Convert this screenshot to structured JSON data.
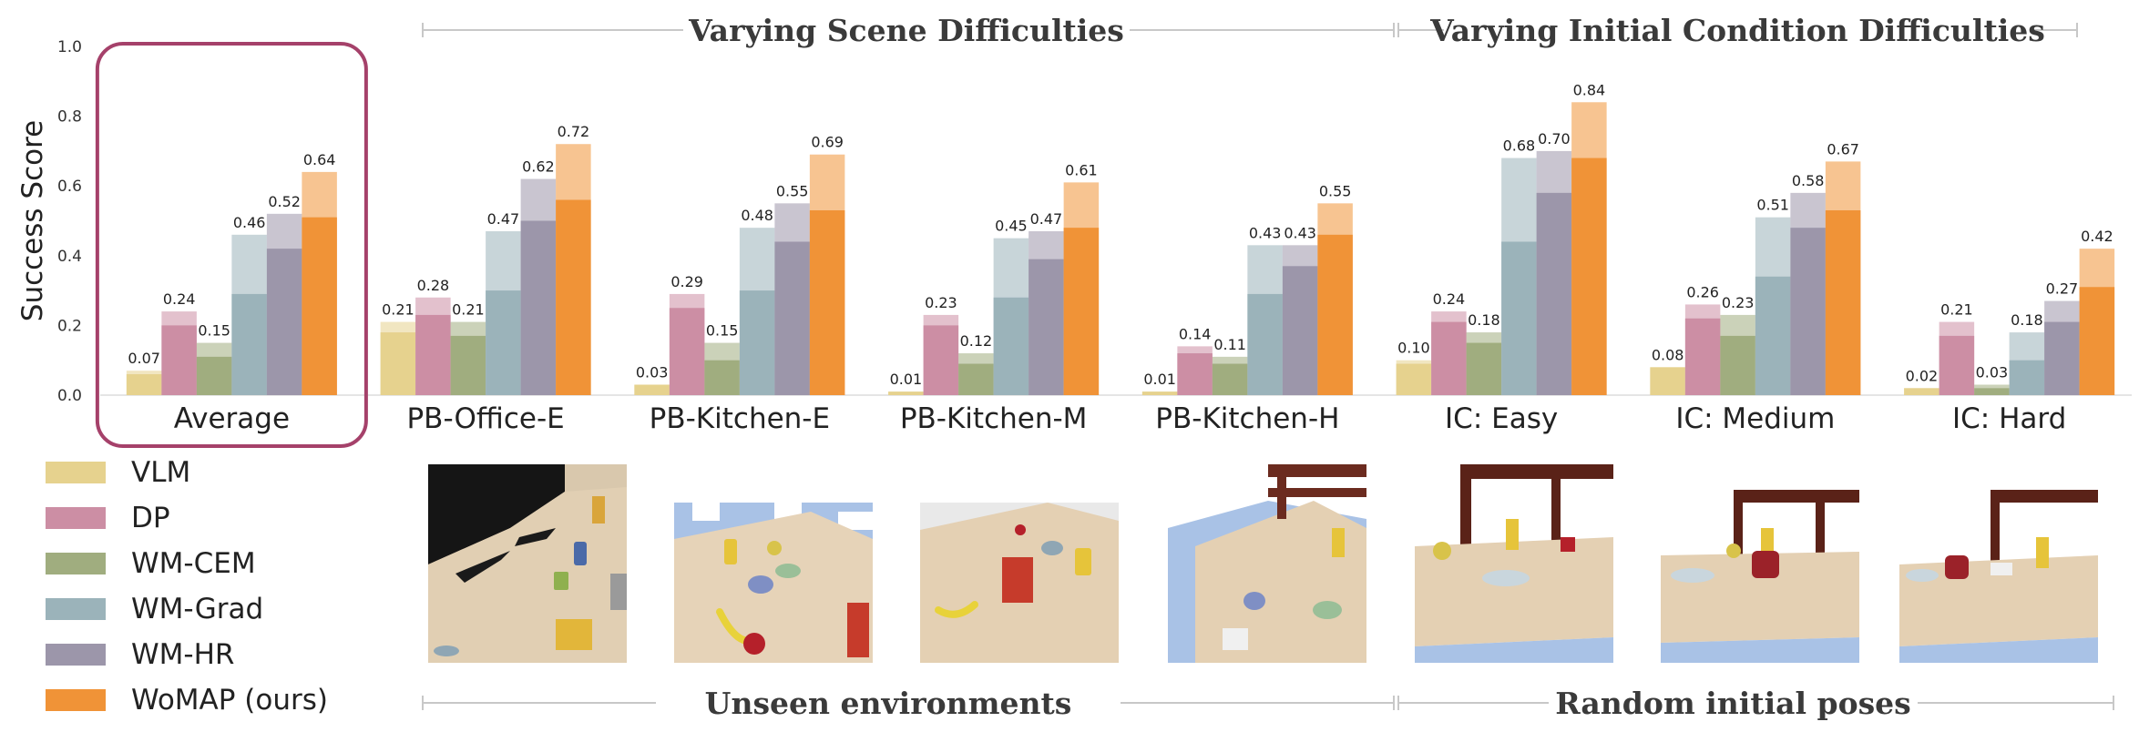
{
  "chart_data": {
    "type": "bar",
    "ylabel": "Success Score",
    "ylim": [
      0,
      1.0
    ],
    "yticks": [
      "0.0",
      "0.2",
      "0.4",
      "0.6",
      "0.8",
      "1.0"
    ],
    "grid": false,
    "legend_position": "left-below",
    "categories": [
      "Average",
      "PB-Office-E",
      "PB-Kitchen-E",
      "PB-Kitchen-M",
      "PB-Kitchen-H",
      "IC: Easy",
      "IC: Medium",
      "IC: Hard"
    ],
    "series": [
      {
        "name": "VLM",
        "color": "#e6d28e",
        "values": [
          0.07,
          0.21,
          0.03,
          0.01,
          0.01,
          0.1,
          0.08,
          0.02
        ],
        "labels": [
          "0.07",
          "0.21",
          "0.03",
          "0.01",
          "0.01",
          "0.10",
          "0.08",
          "0.02"
        ],
        "inner": [
          0.06,
          0.18,
          0.03,
          0.01,
          0.01,
          0.09,
          0.08,
          0.02
        ]
      },
      {
        "name": "DP",
        "color": "#cc8ea4",
        "values": [
          0.24,
          0.28,
          0.29,
          0.23,
          0.14,
          0.24,
          0.26,
          0.21
        ],
        "labels": [
          "0.24",
          "0.28",
          "0.29",
          "0.23",
          "0.14",
          "0.24",
          "0.26",
          "0.21"
        ],
        "inner": [
          0.2,
          0.23,
          0.25,
          0.2,
          0.12,
          0.21,
          0.22,
          0.17
        ]
      },
      {
        "name": "WM-CEM",
        "color": "#a0ad7f",
        "values": [
          0.15,
          0.21,
          0.15,
          0.12,
          0.11,
          0.18,
          0.23,
          0.03
        ],
        "labels": [
          "0.15",
          "0.21",
          "0.15",
          "0.12",
          "0.11",
          "0.18",
          "0.23",
          "0.03"
        ],
        "inner": [
          0.11,
          0.17,
          0.1,
          0.09,
          0.09,
          0.15,
          0.17,
          0.02
        ]
      },
      {
        "name": "WM-Grad",
        "color": "#9bb3ba",
        "values": [
          0.46,
          0.47,
          0.48,
          0.45,
          0.43,
          0.68,
          0.51,
          0.18
        ],
        "labels": [
          "0.46",
          "0.47",
          "0.48",
          "0.45",
          "0.43",
          "0.68",
          "0.51",
          "0.18"
        ],
        "inner": [
          0.29,
          0.3,
          0.3,
          0.28,
          0.29,
          0.44,
          0.34,
          0.1
        ]
      },
      {
        "name": "WM-HR",
        "color": "#9c96aa",
        "values": [
          0.52,
          0.62,
          0.55,
          0.47,
          0.43,
          0.7,
          0.58,
          0.27
        ],
        "labels": [
          "0.52",
          "0.62",
          "0.55",
          "0.47",
          "0.43",
          "0.70",
          "0.58",
          "0.27"
        ],
        "inner": [
          0.42,
          0.5,
          0.44,
          0.39,
          0.37,
          0.58,
          0.48,
          0.21
        ]
      },
      {
        "name": "WoMAP (ours)",
        "color": "#f09337",
        "values": [
          0.64,
          0.72,
          0.69,
          0.61,
          0.55,
          0.84,
          0.67,
          0.42
        ],
        "labels": [
          "0.64",
          "0.72",
          "0.69",
          "0.61",
          "0.55",
          "0.84",
          "0.67",
          "0.42"
        ],
        "inner": [
          0.51,
          0.56,
          0.53,
          0.48,
          0.46,
          0.68,
          0.53,
          0.31
        ]
      }
    ],
    "top_section_labels": [
      "Varying Scene Difficulties",
      "Varying Initial Condition Difficulties"
    ],
    "bottom_section_labels": [
      "Unseen environments",
      "Random initial poses"
    ],
    "highlight_category": "Average",
    "highlight_color": "#a5416a"
  },
  "thumbnails": [
    {
      "icon": "office-scene-thumbnail"
    },
    {
      "icon": "kitchen-easy-scene-thumbnail"
    },
    {
      "icon": "kitchen-medium-scene-thumbnail"
    },
    {
      "icon": "kitchen-hard-scene-thumbnail"
    },
    {
      "icon": "ic-easy-scene-thumbnail"
    },
    {
      "icon": "ic-medium-scene-thumbnail"
    },
    {
      "icon": "ic-hard-scene-thumbnail"
    }
  ]
}
